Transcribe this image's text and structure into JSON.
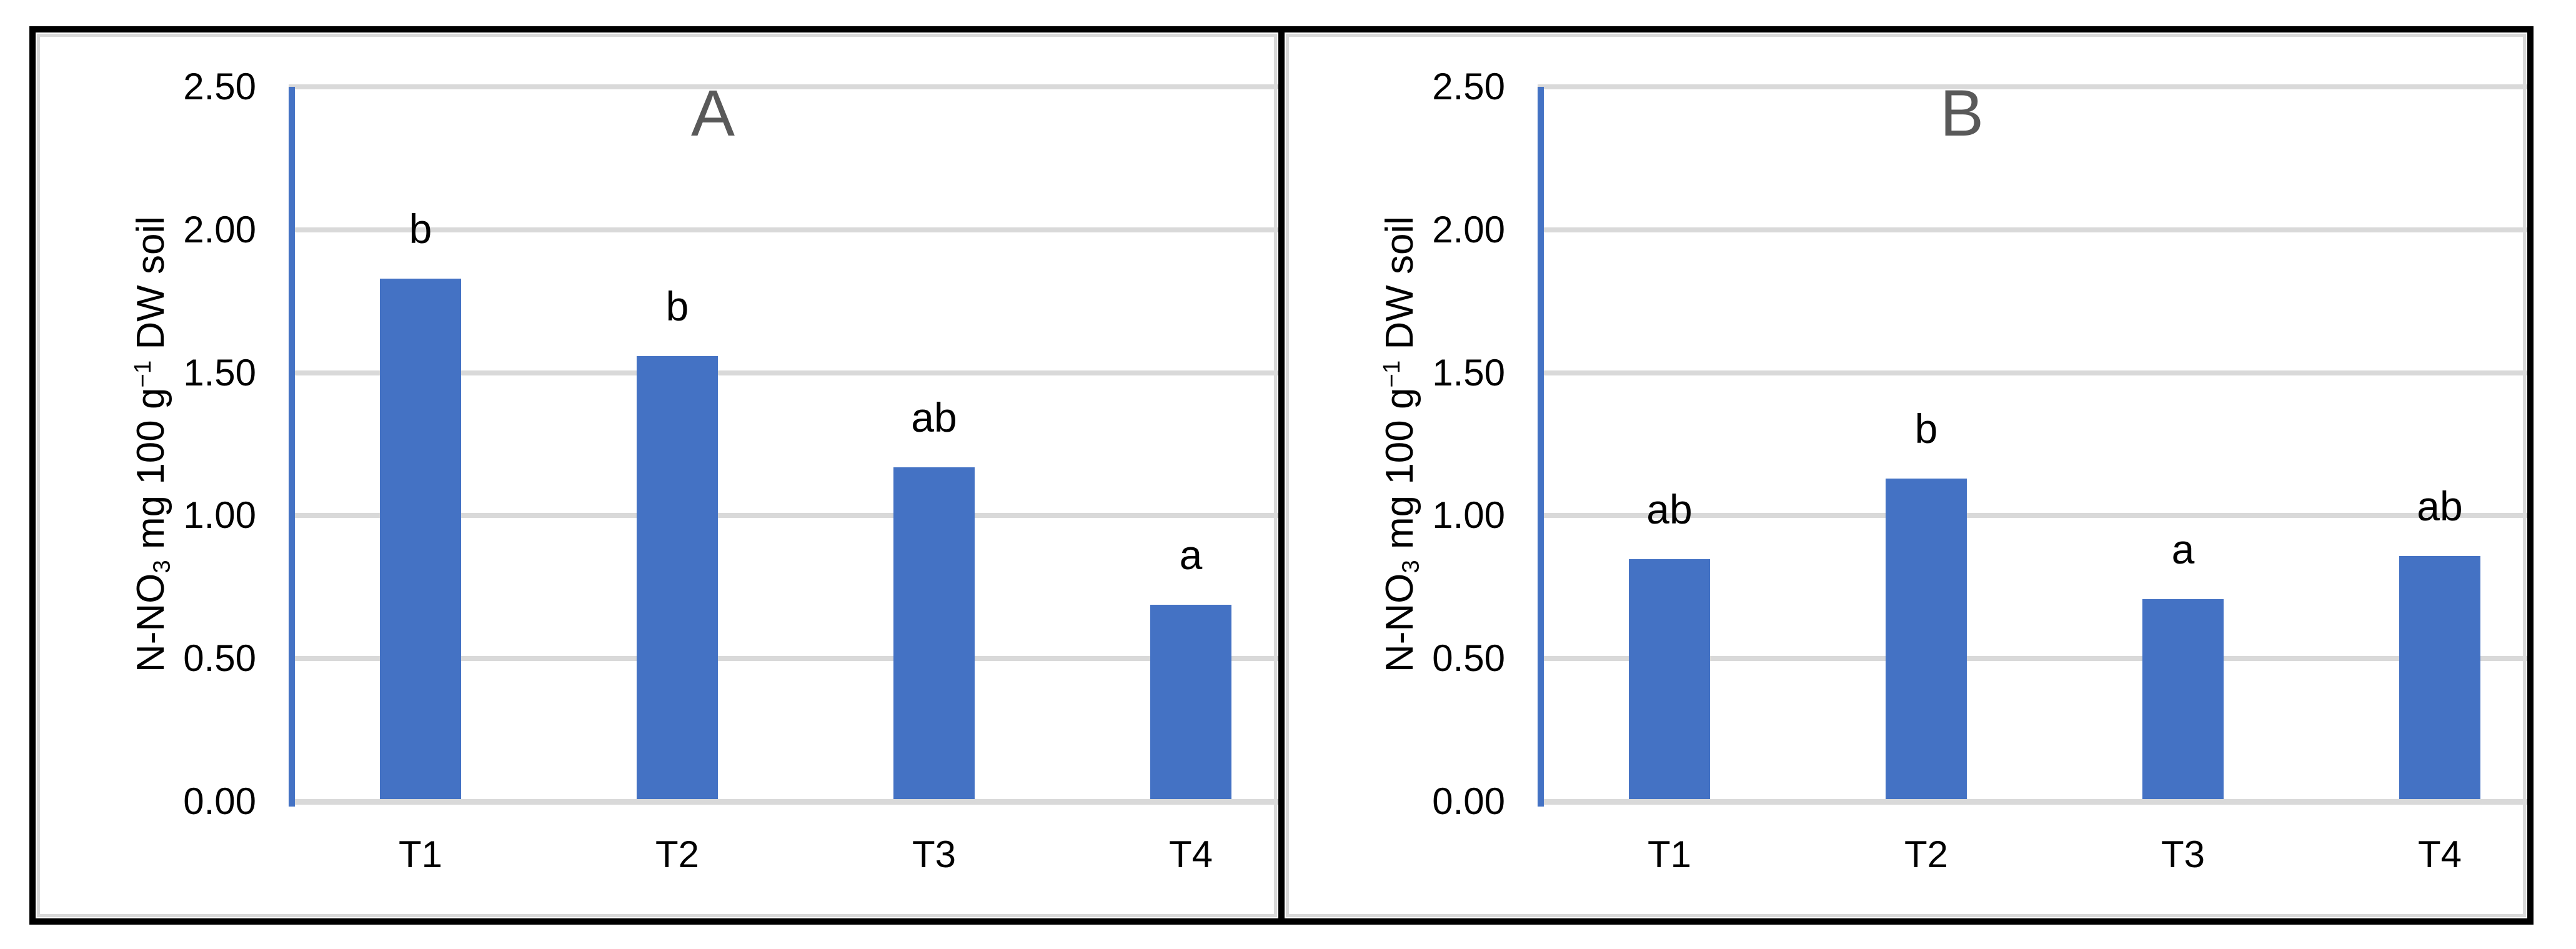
{
  "figure": {
    "description": "Two-panel bar chart figure",
    "panel_labels": [
      "A",
      "B"
    ]
  },
  "colors": {
    "bar": "#4472C4",
    "axis_line": "#4472C4",
    "gridline": "#D9D9D9",
    "panel_title": "#595959",
    "text": "#000000",
    "outer_border": "#000000"
  },
  "y_axis_title": {
    "pre": "N-NO",
    "sub": "3",
    "mid": " mg 100 g",
    "sup": "−1",
    "post": " DW soil",
    "full": "N-NO3 mg 100 g−1 DW soil"
  },
  "chart_data": [
    {
      "type": "bar",
      "panel_label": "A",
      "categories": [
        "T1",
        "T2",
        "T3",
        "T4"
      ],
      "values": [
        1.82,
        1.55,
        1.16,
        0.68
      ],
      "sig_letters": [
        "b",
        "b",
        "ab",
        "a"
      ],
      "ylabel": "N-NO3 mg 100 g−1 DW soil",
      "ylim": [
        0,
        2.5
      ],
      "ytick_step": 0.5,
      "ytick_labels": [
        "0.00",
        "0.50",
        "1.00",
        "1.50",
        "2.00",
        "2.50"
      ],
      "grid": true,
      "legend": "none",
      "bar_color": "#4472C4",
      "axis_color": "#4472C4",
      "gridline_color": "#D9D9D9",
      "title_color": "#595959"
    },
    {
      "type": "bar",
      "panel_label": "B",
      "categories": [
        "T1",
        "T2",
        "T3",
        "T4"
      ],
      "values": [
        0.84,
        1.12,
        0.7,
        0.85
      ],
      "sig_letters": [
        "ab",
        "b",
        "a",
        "ab"
      ],
      "ylabel": "N-NO3 mg 100 g−1 DW soil",
      "ylim": [
        0,
        2.5
      ],
      "ytick_step": 0.5,
      "ytick_labels": [
        "0.00",
        "0.50",
        "1.00",
        "1.50",
        "2.00",
        "2.50"
      ],
      "grid": true,
      "legend": "none",
      "bar_color": "#4472C4",
      "axis_color": "#4472C4",
      "gridline_color": "#D9D9D9",
      "title_color": "#595959"
    }
  ]
}
